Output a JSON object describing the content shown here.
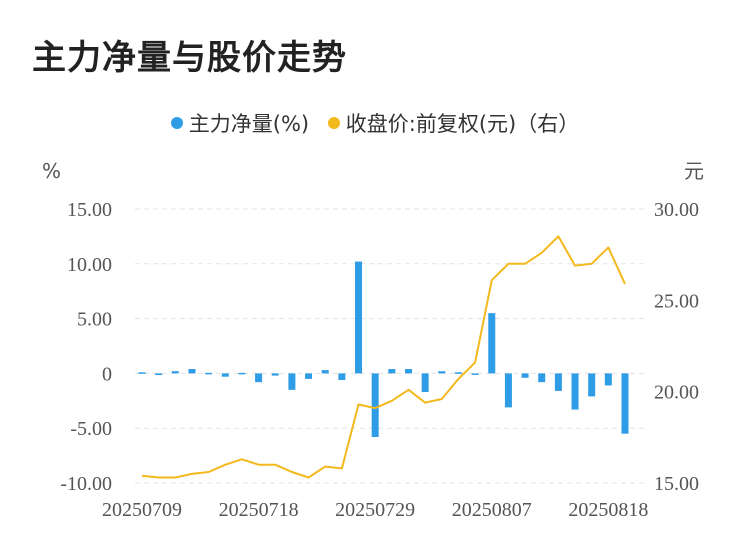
{
  "title": "主力净量与股价走势",
  "colors": {
    "bar": "#2e9de6",
    "line": "#f3b81c",
    "grid": "#e3e3e3",
    "text": "#555555"
  },
  "legend": {
    "bar_label": "主力净量(%)",
    "line_label": "收盘价:前复权(元)（右）"
  },
  "axes": {
    "left_unit": "%",
    "right_unit": "元"
  },
  "chart_data": {
    "type": "bar+line",
    "x_ticks": [
      "20250709",
      "20250718",
      "20250729",
      "20250807",
      "20250818"
    ],
    "x_tick_index": [
      0,
      7,
      14,
      21,
      28
    ],
    "left_axis": {
      "ticks": [
        "15.00",
        "10.00",
        "5.00",
        "0",
        "-5.00",
        "-10.00"
      ],
      "ylim": [
        -10,
        15
      ]
    },
    "right_axis": {
      "ticks": [
        "30.00",
        "25.00",
        "20.00",
        "15.00"
      ],
      "ylim": [
        15,
        30
      ]
    },
    "series": [
      {
        "kind": "bar",
        "axis": "left",
        "values": [
          0.1,
          -0.15,
          0.2,
          0.4,
          0.05,
          -0.3,
          0.05,
          -0.8,
          -0.2,
          -1.5,
          -0.5,
          0.3,
          -0.6,
          10.2,
          -5.8,
          0.4,
          0.4,
          -1.7,
          0.2,
          0.1,
          0.0,
          5.5,
          -3.1,
          -0.4,
          -0.8,
          -1.6,
          -3.3,
          -2.1,
          -1.1,
          -5.5
        ]
      },
      {
        "kind": "line",
        "axis": "right",
        "values": [
          15.4,
          15.3,
          15.3,
          15.5,
          15.6,
          16.0,
          16.3,
          16.0,
          16.0,
          15.6,
          15.3,
          15.9,
          15.8,
          19.3,
          19.1,
          19.5,
          20.1,
          19.4,
          19.6,
          20.7,
          21.6,
          26.1,
          27.0,
          27.0,
          27.6,
          28.5,
          26.9,
          27.0,
          27.9,
          25.9
        ]
      }
    ]
  }
}
